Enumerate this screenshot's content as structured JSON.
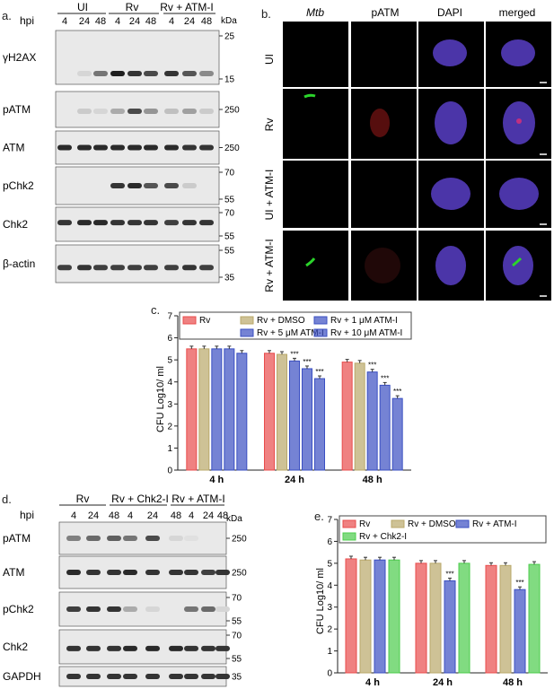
{
  "panel_a": {
    "letter": "a.",
    "groups": [
      "UI",
      "Rv",
      "Rv + ATM-I"
    ],
    "hpi_label": "hpi",
    "timepoints": [
      "4",
      "24",
      "48",
      "4",
      "24",
      "48",
      "4",
      "24",
      "48"
    ],
    "kda_label": "kDa",
    "rows": [
      {
        "name": "γH2AX",
        "markers": [
          "25",
          "15"
        ]
      },
      {
        "name": "pATM",
        "markers": [
          "250"
        ]
      },
      {
        "name": "ATM",
        "markers": [
          "250"
        ]
      },
      {
        "name": "pChk2",
        "markers": [
          "70",
          "55"
        ]
      },
      {
        "name": "Chk2",
        "markers": [
          "70",
          "55"
        ]
      },
      {
        "name": "β-actin",
        "markers": [
          "55",
          "35"
        ]
      }
    ]
  },
  "panel_b": {
    "letter": "b.",
    "columns": [
      "Mtb",
      "pATM",
      "DAPI",
      "merged"
    ],
    "rows": [
      "UI",
      "Rv",
      "UI + ATM-I",
      "Rv + ATM-I"
    ]
  },
  "panel_c": {
    "letter": "c.",
    "chart_data": {
      "type": "bar",
      "categories": [
        "4 h",
        "24 h",
        "48 h"
      ],
      "series": [
        {
          "name": "Rv",
          "values": [
            5.5,
            5.3,
            4.9
          ],
          "color": "#e84c4c"
        },
        {
          "name": "Rv + DMSO",
          "values": [
            5.5,
            5.25,
            4.85
          ],
          "color": "#b9a86a"
        },
        {
          "name": "Rv + 1 μM ATM-I",
          "values": [
            5.5,
            4.95,
            4.45
          ],
          "color": "#3a4fc2"
        },
        {
          "name": "Rv + 5 μM ATM-I",
          "values": [
            5.5,
            4.6,
            3.85
          ],
          "color": "#3a4fc2"
        },
        {
          "name": "Rv + 10 μM ATM-I",
          "values": [
            5.3,
            4.15,
            3.25
          ],
          "color": "#3a4fc2"
        }
      ],
      "ylabel": "CFU Log10/ ml",
      "ylim": [
        0,
        7
      ],
      "yticks": [
        "0",
        "1",
        "2",
        "3",
        "4",
        "5",
        "6",
        "7"
      ],
      "significance": "***"
    }
  },
  "panel_d": {
    "letter": "d.",
    "groups": [
      "Rv",
      "Rv + Chk2-I",
      "Rv + ATM-I"
    ],
    "hpi_label": "hpi",
    "timepoints": [
      "4",
      "24",
      "48",
      "4",
      "24",
      "48",
      "4",
      "24",
      "48"
    ],
    "kda_label": "kDa",
    "rows": [
      {
        "name": "pATM",
        "markers": [
          "250"
        ]
      },
      {
        "name": "ATM",
        "markers": [
          "250"
        ]
      },
      {
        "name": "pChk2",
        "markers": [
          "70",
          "55"
        ]
      },
      {
        "name": "Chk2",
        "markers": [
          "70",
          "55"
        ]
      },
      {
        "name": "GAPDH",
        "markers": [
          "35"
        ]
      }
    ]
  },
  "panel_e": {
    "letter": "e.",
    "chart_data": {
      "type": "bar",
      "categories": [
        "4 h",
        "24 h",
        "48 h"
      ],
      "series": [
        {
          "name": "Rv",
          "values": [
            5.2,
            5.0,
            4.9
          ],
          "color": "#e84c4c"
        },
        {
          "name": "Rv + DMSO",
          "values": [
            5.15,
            5.0,
            4.9
          ],
          "color": "#b9a86a"
        },
        {
          "name": "Rv + ATM-I",
          "values": [
            5.15,
            4.2,
            3.8
          ],
          "color": "#3a4fc2"
        },
        {
          "name": "Rv + Chk2-I",
          "values": [
            5.15,
            5.0,
            4.95
          ],
          "color": "#4ccc4c"
        }
      ],
      "ylabel": "CFU Log10/ ml",
      "ylim": [
        0,
        7
      ],
      "yticks": [
        "0",
        "1",
        "2",
        "3",
        "4",
        "5",
        "6",
        "7"
      ],
      "significance": "***"
    }
  }
}
